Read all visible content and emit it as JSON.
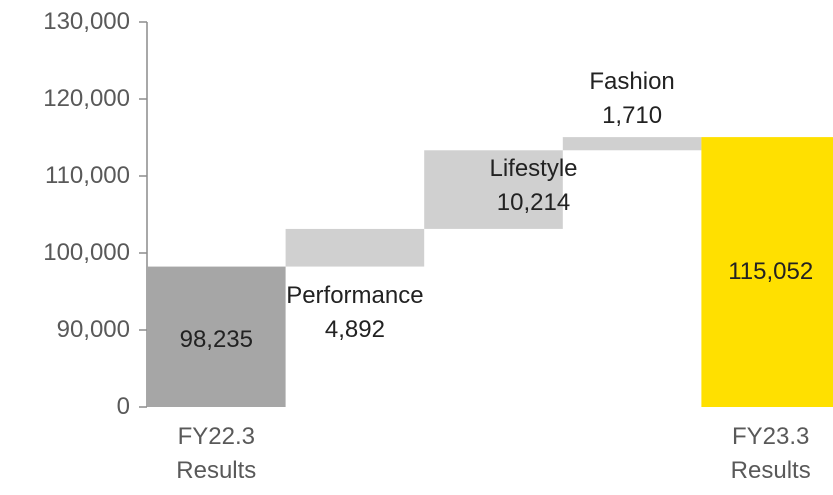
{
  "chart_data": {
    "type": "waterfall",
    "categories": [
      "FY22.3 Results",
      "Performance",
      "Lifestyle",
      "Fashion",
      "FY23.3 Results"
    ],
    "values": [
      98235,
      4892,
      10214,
      1710,
      115052
    ],
    "value_labels": [
      "98,235",
      "4,892",
      "10,214",
      "1,710",
      "115,052"
    ],
    "colors": [
      "#a6a6a6",
      "#d0d0d0",
      "#d0d0d0",
      "#d0d0d0",
      "#ffe000"
    ],
    "ylim": [
      0,
      130000
    ],
    "yticks": [
      0,
      {
        "value": 90000,
        "label": "90,000"
      },
      {
        "value": 100000,
        "label": "100,000"
      },
      {
        "value": 110000,
        "label": "110,000"
      },
      {
        "value": 120000,
        "label": "120,000"
      },
      {
        "value": 130000,
        "label": "130,000"
      }
    ]
  }
}
